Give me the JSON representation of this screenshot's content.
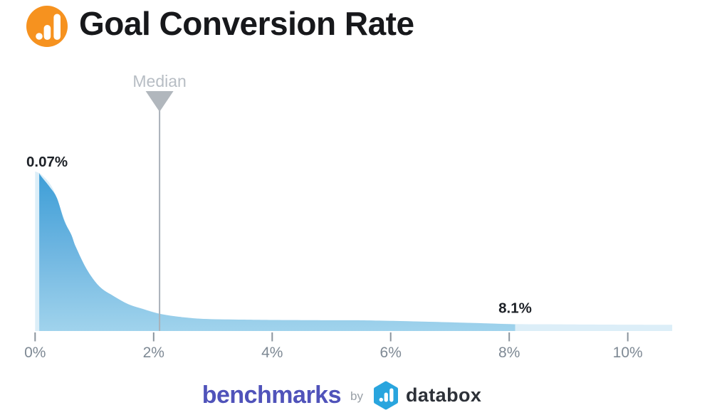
{
  "header": {
    "title": "Goal Conversion Rate",
    "icon": {
      "name": "databox-bars-icon",
      "color": "#F6921F"
    }
  },
  "chart_data": {
    "type": "area",
    "title": "Goal Conversion Rate",
    "x_unit": "%",
    "x_range": [
      0,
      10.75
    ],
    "grid": false,
    "legend": "none",
    "x_ticks": {
      "values": [
        0,
        2,
        4,
        6,
        8,
        10
      ],
      "labels": [
        "0%",
        "2%",
        "4%",
        "6%",
        "8%",
        "10%"
      ]
    },
    "median": {
      "value": 2.1,
      "label": "Median"
    },
    "annotations": {
      "min": {
        "x": 0.07,
        "label": "0.07%"
      },
      "max": {
        "x": 8.1,
        "label": "8.1%"
      }
    },
    "highlight_range_pct": [
      0.07,
      8.1
    ],
    "series": [
      {
        "name": "distribution-full-range",
        "role": "base",
        "points": [
          [
            0,
            101
          ],
          [
            0.12,
            98.5
          ],
          [
            0.3,
            90
          ],
          [
            0.5,
            70
          ],
          [
            0.7,
            50
          ],
          [
            0.9,
            37
          ],
          [
            1.1,
            27.5
          ],
          [
            1.35,
            21.5
          ],
          [
            1.6,
            16.5
          ],
          [
            1.85,
            13.7
          ],
          [
            2.15,
            10.6
          ],
          [
            2.55,
            8.5
          ],
          [
            2.95,
            7.5
          ],
          [
            3.55,
            7.1
          ],
          [
            4.05,
            6.9
          ],
          [
            5,
            6.7
          ],
          [
            5.6,
            6.6
          ],
          [
            6.5,
            6.0
          ],
          [
            7.3,
            5.2
          ],
          [
            8.1,
            4.4
          ],
          [
            9,
            4.2
          ],
          [
            10,
            4.0
          ],
          [
            10.75,
            3.9
          ]
        ]
      },
      {
        "name": "distribution-highlighted",
        "role": "highlight",
        "points": [
          [
            0.07,
            100
          ],
          [
            0.1,
            98
          ],
          [
            0.25,
            91
          ],
          [
            0.37,
            84
          ],
          [
            0.49,
            70
          ],
          [
            0.61,
            61
          ],
          [
            0.69,
            53
          ],
          [
            0.88,
            38.5
          ],
          [
            1.09,
            28
          ],
          [
            1.33,
            22
          ],
          [
            1.57,
            17
          ],
          [
            1.81,
            14
          ],
          [
            2.11,
            10.8
          ],
          [
            2.5,
            8.7
          ],
          [
            2.9,
            7.6
          ],
          [
            3.5,
            7.2
          ],
          [
            4.0,
            7.0
          ],
          [
            5.0,
            6.8
          ],
          [
            5.6,
            6.7
          ],
          [
            6.5,
            6.0
          ],
          [
            7.3,
            5.2
          ],
          [
            8.1,
            4.2
          ]
        ]
      }
    ],
    "colors": {
      "highlight_top": "#3D9ED7",
      "highlight_mid": "#6FB6E1",
      "highlight_bottom": "#A0D3EC",
      "base_fill": "#DCEEF8",
      "median_line": "#A9B1B9",
      "median_triangle": "#B1B7BD",
      "median_text": "#B7BDC4",
      "tick_mark": "#8B949D",
      "tick_text": "#7E8994",
      "annotation_text": "#1D2127"
    }
  },
  "footer": {
    "brand": "benchmarks",
    "connector": "by",
    "partner": "databox",
    "brand_color": "#5053BA",
    "connector_color": "#99A0A7",
    "partner_color": "#2D3138",
    "partner_logo_color": "#29A5DE"
  }
}
